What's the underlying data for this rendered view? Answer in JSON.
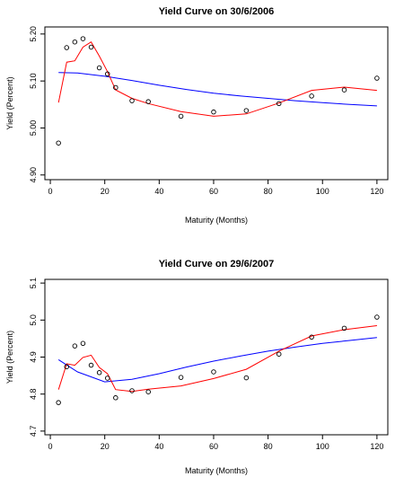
{
  "chart_data": [
    {
      "type": "scatter",
      "title": "Yield Curve on 30/6/2006",
      "xlabel": "Maturity (Months)",
      "ylabel": "Yield (Percent)",
      "xlim": [
        -2,
        124
      ],
      "ylim": [
        4.89,
        5.215
      ],
      "x_ticks": [
        0,
        20,
        40,
        60,
        80,
        100,
        120
      ],
      "y_ticks": [
        4.9,
        5.0,
        5.1,
        5.2
      ],
      "y_tick_labels": [
        "4.90",
        "5.00",
        "5.10",
        "5.20"
      ],
      "grid": false,
      "colors": {
        "observed": "#000000",
        "red_fit": "#ff0000",
        "blue_fit": "#0000ff"
      },
      "points": {
        "x": [
          3,
          6,
          9,
          12,
          15,
          18,
          21,
          24,
          30,
          36,
          48,
          60,
          72,
          84,
          96,
          108,
          120
        ],
        "y": [
          4.968,
          5.171,
          5.183,
          5.19,
          5.172,
          5.128,
          5.115,
          5.086,
          5.058,
          5.056,
          5.025,
          5.034,
          5.037,
          5.052,
          5.068,
          5.081,
          5.106
        ]
      },
      "red_line": {
        "x": [
          3,
          6,
          9,
          12,
          15,
          18,
          21,
          24,
          30,
          36,
          48,
          60,
          72,
          84,
          96,
          108,
          120
        ],
        "y": [
          5.054,
          5.14,
          5.143,
          5.172,
          5.183,
          5.153,
          5.12,
          5.081,
          5.063,
          5.052,
          5.035,
          5.025,
          5.03,
          5.053,
          5.08,
          5.087,
          5.08
        ]
      },
      "blue_line": {
        "x": [
          3,
          10,
          20,
          30,
          40,
          50,
          60,
          70,
          80,
          90,
          100,
          110,
          120
        ],
        "y": [
          5.118,
          5.117,
          5.11,
          5.101,
          5.091,
          5.082,
          5.074,
          5.068,
          5.063,
          5.058,
          5.054,
          5.05,
          5.047
        ]
      }
    },
    {
      "type": "scatter",
      "title": "Yield Curve on 29/6/2007",
      "xlabel": "Maturity (Months)",
      "ylabel": "Yield (Percent)",
      "xlim": [
        -2,
        124
      ],
      "ylim": [
        4.69,
        5.11
      ],
      "x_ticks": [
        0,
        20,
        40,
        60,
        80,
        100,
        120
      ],
      "y_ticks": [
        4.7,
        4.8,
        4.9,
        5.0,
        5.1
      ],
      "y_tick_labels": [
        "4.7",
        "4.8",
        "4.9",
        "5.0",
        "5.1"
      ],
      "grid": false,
      "colors": {
        "observed": "#000000",
        "red_fit": "#ff0000",
        "blue_fit": "#0000ff"
      },
      "points": {
        "x": [
          3,
          6,
          9,
          12,
          15,
          18,
          21,
          24,
          30,
          36,
          48,
          60,
          72,
          84,
          96,
          108,
          120
        ],
        "y": [
          4.777,
          4.874,
          4.93,
          4.937,
          4.878,
          4.858,
          4.843,
          4.79,
          4.809,
          4.806,
          4.845,
          4.86,
          4.844,
          4.908,
          4.954,
          4.978,
          5.008
        ]
      },
      "red_line": {
        "x": [
          3,
          6,
          9,
          12,
          15,
          18,
          21,
          24,
          30,
          36,
          48,
          60,
          72,
          84,
          96,
          108,
          120
        ],
        "y": [
          4.812,
          4.882,
          4.878,
          4.899,
          4.905,
          4.872,
          4.855,
          4.812,
          4.807,
          4.813,
          4.822,
          4.842,
          4.867,
          4.916,
          4.957,
          4.974,
          4.985
        ]
      },
      "blue_line": {
        "x": [
          3,
          10,
          20,
          30,
          40,
          50,
          60,
          70,
          80,
          90,
          100,
          110,
          120
        ],
        "y": [
          4.893,
          4.86,
          4.833,
          4.84,
          4.855,
          4.873,
          4.889,
          4.903,
          4.916,
          4.927,
          4.937,
          4.945,
          4.953
        ]
      }
    }
  ]
}
